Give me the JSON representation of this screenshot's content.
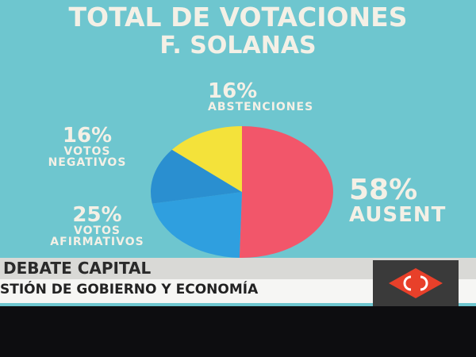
{
  "chart_data": {
    "type": "pie",
    "title": "TOTAL DE VOTACIONES",
    "subtitle": "F. SOLANAS",
    "categories": [
      "AUSENT",
      "VOTOS AFIRMATIVOS",
      "VOTOS NEGATIVOS",
      "ABSTENCIONES"
    ],
    "values": [
      58,
      25,
      16,
      16
    ],
    "value_labels": [
      "58%",
      "25%",
      "16%",
      "16%"
    ],
    "colors": [
      "#f2566a",
      "#2f9fdf",
      "#2a8fd0",
      "#f4e23a"
    ]
  },
  "banner": {
    "program": "DEBATE CAPITAL",
    "topic": "STIÓN DE GOBIERNO Y ECONOMÍA"
  }
}
